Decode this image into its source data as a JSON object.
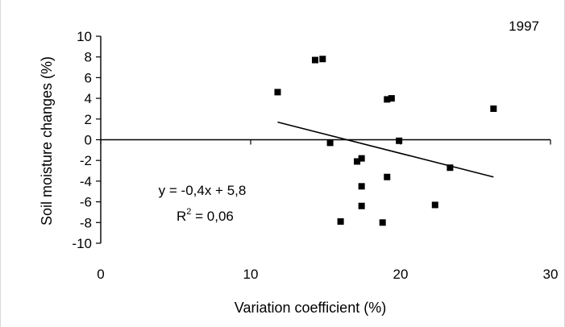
{
  "chart_data": {
    "type": "scatter",
    "year_label": "1997",
    "xlabel": "Variation coefficient (%)",
    "ylabel": "Soil moisture changes (%)",
    "xlim": [
      0,
      30
    ],
    "ylim": [
      -10,
      10
    ],
    "xticks": [
      0,
      10,
      20,
      30
    ],
    "yticks": [
      10,
      8,
      6,
      4,
      2,
      0,
      -2,
      -4,
      -6,
      -8,
      -10
    ],
    "grid": false,
    "points": [
      {
        "x": 11.8,
        "y": 4.6
      },
      {
        "x": 14.3,
        "y": 7.7
      },
      {
        "x": 14.8,
        "y": 7.8
      },
      {
        "x": 15.3,
        "y": -0.3
      },
      {
        "x": 16.0,
        "y": -7.9
      },
      {
        "x": 17.1,
        "y": -2.1
      },
      {
        "x": 17.4,
        "y": -1.8
      },
      {
        "x": 17.4,
        "y": -4.5
      },
      {
        "x": 17.4,
        "y": -6.4
      },
      {
        "x": 18.8,
        "y": -8.0
      },
      {
        "x": 19.1,
        "y": 3.9
      },
      {
        "x": 19.1,
        "y": -3.6
      },
      {
        "x": 19.4,
        "y": 4.0
      },
      {
        "x": 19.9,
        "y": -0.1
      },
      {
        "x": 22.3,
        "y": -6.3
      },
      {
        "x": 23.3,
        "y": -2.7
      },
      {
        "x": 26.2,
        "y": 3.0
      }
    ],
    "trendline": {
      "x": [
        11.8,
        26.2
      ],
      "y": [
        1.7,
        -3.6
      ]
    },
    "equation": "y = -0,4x + 5,8",
    "r2_label": "R",
    "r2_sup": "2",
    "r2_value": " = 0,06"
  }
}
